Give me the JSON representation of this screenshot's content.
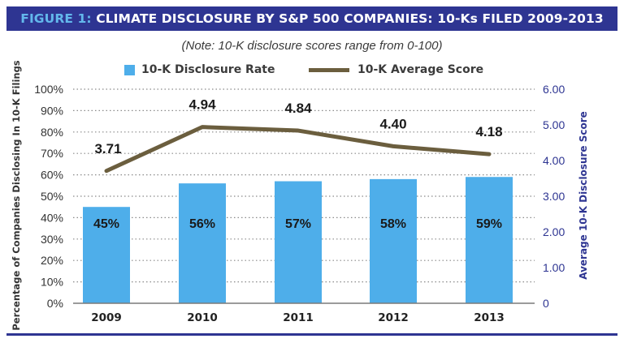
{
  "header": {
    "title_prefix": "FIGURE 1:",
    "title_main": " CLIMATE DISCLOSURE BY S&P 500 COMPANIES: 10-Ks FILED 2009-2013",
    "note": "(Note: 10-K disclosure scores range from 0-100)"
  },
  "colors": {
    "title_bar": "#2e3592",
    "title_prefix": "#63b8ec",
    "bar": "#4eaeea",
    "line": "#6b5e3e",
    "right_axis_text": "#2e3592"
  },
  "chart_data": {
    "type": "bar",
    "categories": [
      "2009",
      "2010",
      "2011",
      "2012",
      "2013"
    ],
    "series": [
      {
        "name": "10-K Disclosure Rate",
        "type": "bar",
        "axis": "left",
        "values": [
          45,
          56,
          57,
          58,
          59
        ],
        "labels": [
          "45%",
          "56%",
          "57%",
          "58%",
          "59%"
        ]
      },
      {
        "name": "10-K Average Score",
        "type": "line",
        "axis": "right",
        "values": [
          3.71,
          4.94,
          4.84,
          4.4,
          4.18
        ],
        "labels": [
          "3.71",
          "4.94",
          "4.84",
          "4.40",
          "4.18"
        ]
      }
    ],
    "ylabel": "Percentage of Companies Disclosing In 10-K Filings",
    "y2label": "Average 10-K Disclosure Score",
    "ylim": [
      0,
      100
    ],
    "y2lim": [
      0,
      6
    ],
    "yticks": [
      "0%",
      "10%",
      "20%",
      "30%",
      "40%",
      "50%",
      "60%",
      "70%",
      "80%",
      "90%",
      "100%"
    ],
    "y2ticks": [
      "0",
      "1.00",
      "2.00",
      "3.00",
      "4.00",
      "5.00",
      "6.00"
    ],
    "grid": "dotted horizontal",
    "legend_position": "top"
  }
}
